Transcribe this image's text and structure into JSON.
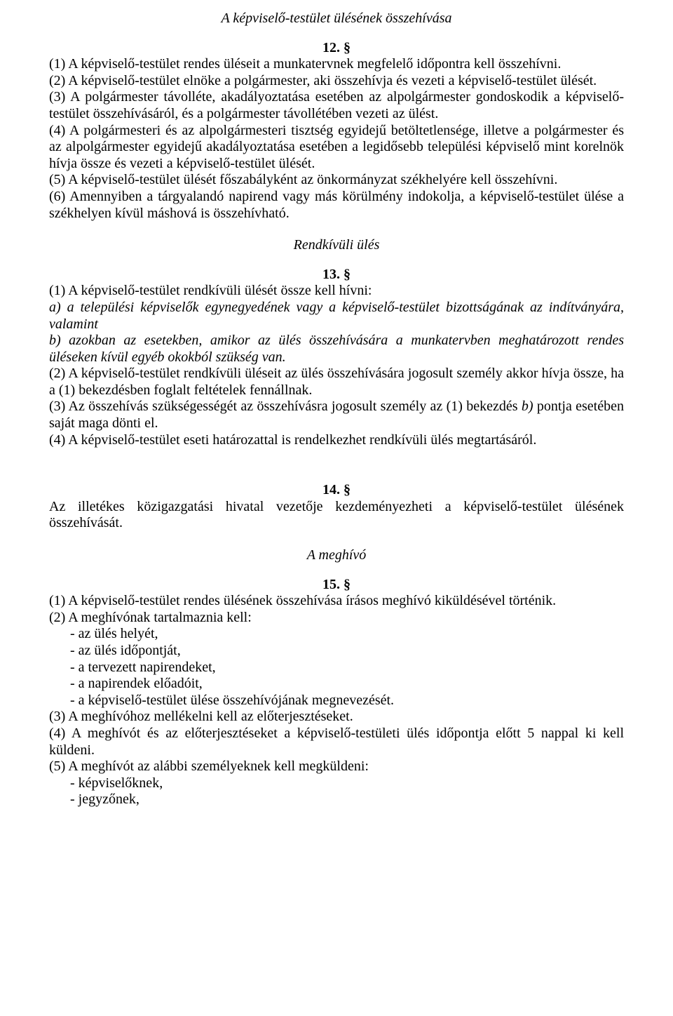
{
  "colors": {
    "text": "#000000",
    "background": "#ffffff"
  },
  "typography": {
    "font_family": "Times New Roman",
    "body_size_pt": 15,
    "heading_style": "italic",
    "section_number_weight": "bold"
  },
  "sec12": {
    "heading": "A képviselő-testület ülésének összehívása",
    "number": "12. §",
    "p1": "(1) A képviselő-testület rendes üléseit a munkatervnek megfelelő időpontra kell összehívni.",
    "p2": "(2) A képviselő-testület elnöke a polgármester, aki összehívja és vezeti a képviselő-testület ülését.",
    "p3": "(3) A polgármester távolléte, akadályoztatása esetében az alpolgármester gondoskodik a képviselő-testület összehívásáról, és a polgármester távollétében vezeti az ülést.",
    "p4": "(4) A polgármesteri és az alpolgármesteri tisztség egyidejű betöltetlensége, illetve a polgármester és az alpolgármester egyidejű akadályoztatása esetében a legidősebb települési képviselő mint korelnök hívja össze és vezeti a képviselő-testület ülését.",
    "p5": "(5) A képviselő-testület ülését főszabályként az önkormányzat székhelyére kell összehívni.",
    "p6": "(6) Amennyiben a tárgyalandó napirend vagy más körülmény indokolja, a képviselő-testület ülése a székhelyen kívül máshová is összehívható."
  },
  "sec13": {
    "heading": "Rendkívüli ülés",
    "number": "13. §",
    "p1": "(1) A képviselő-testület rendkívüli ülését össze kell hívni:",
    "p1a": "a) a települési képviselők egynegyedének vagy a képviselő-testület bizottságának az indítványára, valamint",
    "p1b": "b) azokban az esetekben, amikor az ülés összehívására a munkatervben meghatározott rendes üléseken kívül egyéb okokból szükség van.",
    "p2": "(2) A képviselő-testület rendkívüli üléseit az ülés összehívására jogosult személy akkor hívja össze, ha a (1) bekezdésben foglalt feltételek fennállnak.",
    "p3_pre": "(3) Az összehívás szükségességét az összehívásra jogosult személy az (1) bekezdés ",
    "p3_b": "b)",
    "p3_post": " pontja esetében saját maga dönti el.",
    "p4": "(4) A képviselő-testület eseti határozattal is rendelkezhet rendkívüli ülés megtartásáról."
  },
  "sec14": {
    "number": "14. §",
    "p1": "Az illetékes közigazgatási hivatal vezetője kezdeményezheti a képviselő-testület ülésének összehívását."
  },
  "sec15": {
    "heading": "A meghívó",
    "number": "15. §",
    "p1": "(1) A képviselő-testület rendes ülésének összehívása írásos meghívó kiküldésével történik.",
    "p2": "(2) A meghívónak tartalmaznia kell:",
    "p2_items": [
      "-   az ülés helyét,",
      "-   az ülés időpontját,",
      "-   a tervezett napirendeket,",
      "-   a napirendek előadóit,",
      "-   a képviselő-testület ülése összehívójának megnevezését."
    ],
    "p3": "(3) A meghívóhoz mellékelni kell az előterjesztéseket.",
    "p4": "(4) A meghívót és az előterjesztéseket a képviselő-testületi ülés időpontja előtt 5 nappal ki kell küldeni.",
    "p5": "(5) A meghívót az alábbi személyeknek kell megküldeni:",
    "p5_items": [
      "-   képviselőknek,",
      "-   jegyzőnek,"
    ]
  }
}
